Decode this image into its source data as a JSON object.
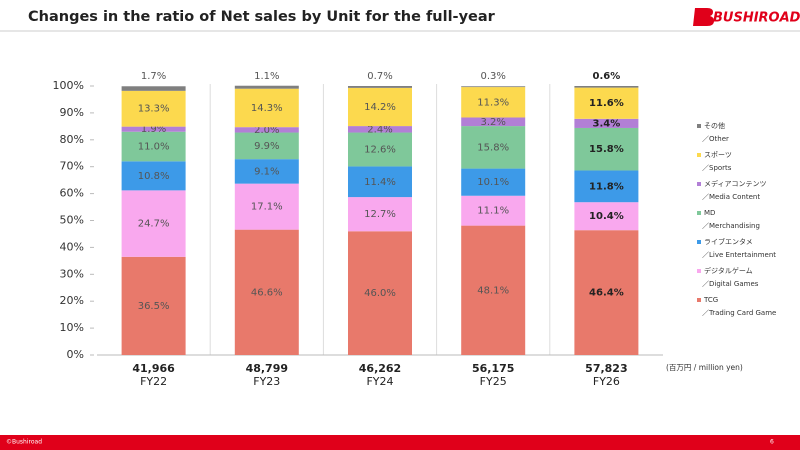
{
  "header": {
    "title": "Changes in the ratio of Net sales by Unit for the full-year",
    "logo": "BUSHIROAD"
  },
  "chart_data": {
    "type": "stacked_bar_100",
    "categories": [
      "FY22",
      "FY23",
      "FY24",
      "FY25",
      "FY26"
    ],
    "totals": [
      {
        "value": 41966,
        "label": "41,966"
      },
      {
        "value": 48799,
        "label": "48,799"
      },
      {
        "value": 46262,
        "label": "46,262"
      },
      {
        "value": 56175,
        "label": "56,175"
      },
      {
        "value": 57823,
        "label": "57,823"
      }
    ],
    "unit_label": "(百万円 / million yen)",
    "emphasis": "FY26",
    "ylim": [
      0,
      100
    ],
    "yticks": [
      {
        "value": 0,
        "label": "0%"
      },
      {
        "value": 10,
        "label": "10%"
      },
      {
        "value": 20,
        "label": "20%"
      },
      {
        "value": 30,
        "label": "30%"
      },
      {
        "value": 40,
        "label": "40%"
      },
      {
        "value": 50,
        "label": "50%"
      },
      {
        "value": 60,
        "label": "60%"
      },
      {
        "value": 70,
        "label": "70%"
      },
      {
        "value": 80,
        "label": "80%"
      },
      {
        "value": 90,
        "label": "90%"
      },
      {
        "value": 100,
        "label": "100%"
      }
    ],
    "series": [
      {
        "name": "TCG",
        "name_en": "／Trading Card Game",
        "color": "#e8796b",
        "values": [
          36.5,
          46.6,
          46.0,
          48.1,
          46.4
        ],
        "value_labels": [
          "36.5%",
          "46.6%",
          "46.0%",
          "48.1%",
          "46.4%"
        ]
      },
      {
        "name": "デジタルゲーム",
        "name_en": "／Digital Games",
        "color": "#f9a8ee",
        "values": [
          24.7,
          17.1,
          12.7,
          11.1,
          10.4
        ],
        "value_labels": [
          "24.7%",
          "17.1%",
          "12.7%",
          "11.1%",
          "10.4%"
        ]
      },
      {
        "name": "ライブエンタメ",
        "name_en": "／Live Entertainment",
        "color": "#3d9ae8",
        "values": [
          10.8,
          9.1,
          11.4,
          10.1,
          11.8
        ],
        "value_labels": [
          "10.8%",
          "9.1%",
          "11.4%",
          "10.1%",
          "11.8%"
        ]
      },
      {
        "name": "MD",
        "name_en": "／Merchandising",
        "color": "#7fc89a",
        "values": [
          11.0,
          9.9,
          12.6,
          15.8,
          15.8
        ],
        "value_labels": [
          "11.0%",
          "9.9%",
          "12.6%",
          "15.8%",
          "15.8%"
        ]
      },
      {
        "name": "メディアコンテンツ",
        "name_en": "／Media Content",
        "color": "#b27fd6",
        "values": [
          1.9,
          2.0,
          2.4,
          3.2,
          3.4
        ],
        "value_labels": [
          "1.9%",
          "2.0%",
          "2.4%",
          "3.2%",
          "3.4%"
        ]
      },
      {
        "name": "スポーツ",
        "name_en": "／Sports",
        "color": "#fcd94e",
        "values": [
          13.3,
          14.3,
          14.2,
          11.3,
          11.6
        ],
        "value_labels": [
          "13.3%",
          "14.3%",
          "14.2%",
          "11.3%",
          "11.6%"
        ]
      },
      {
        "name": "その他",
        "name_en": "／Other",
        "color": "#7f7f7f",
        "values": [
          1.7,
          1.1,
          0.7,
          0.3,
          0.6
        ],
        "value_labels": [
          "1.7%",
          "1.1%",
          "0.7%",
          "0.3%",
          "0.6%"
        ]
      }
    ]
  },
  "footer": {
    "copyright": "©Bushiroad",
    "page": "6"
  }
}
